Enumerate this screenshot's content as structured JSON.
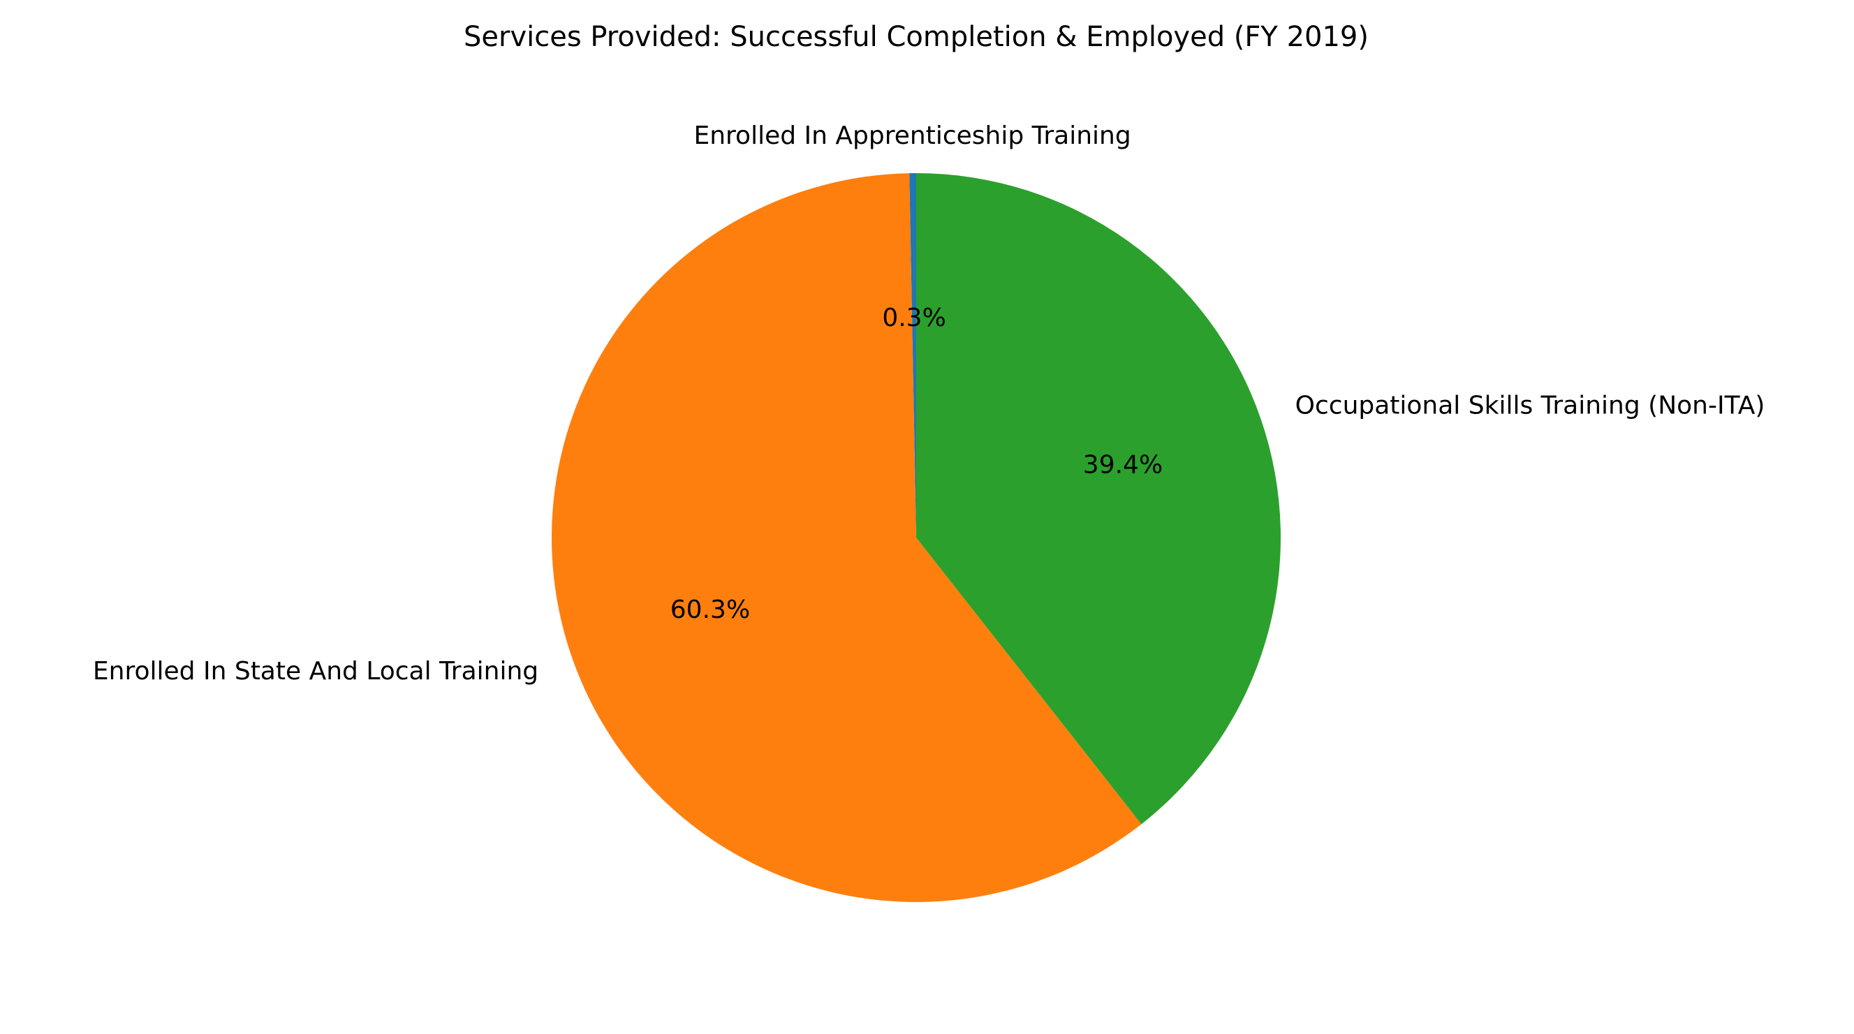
{
  "chart_data": {
    "type": "pie",
    "title": "Services Provided: Successful Completion & Employed (FY 2019)",
    "slices": [
      {
        "label": "Enrolled In Apprenticeship Training",
        "value": 0.3,
        "pct_label": "0.3%",
        "color": "#1f77b4"
      },
      {
        "label": "Enrolled In State And Local Training",
        "value": 60.3,
        "pct_label": "60.3%",
        "color": "#ff7f0e"
      },
      {
        "label": "Occupational Skills Training (Non-ITA)",
        "value": 39.4,
        "pct_label": "39.4%",
        "color": "#2ca02c"
      }
    ],
    "start_angle_deg": 90,
    "direction": "counterclockwise",
    "legend": "none"
  }
}
